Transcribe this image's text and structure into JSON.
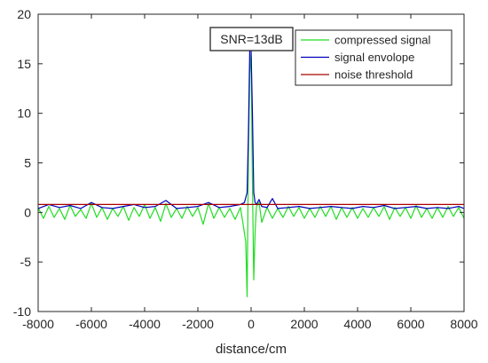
{
  "chart_data": {
    "type": "line",
    "title": "",
    "xlabel": "distance/cm",
    "ylabel": "",
    "xlim": [
      -8000,
      8000
    ],
    "ylim": [
      -10,
      20
    ],
    "xticks": [
      -8000,
      -6000,
      -4000,
      -2000,
      0,
      2000,
      4000,
      6000,
      8000
    ],
    "yticks": [
      -10,
      -5,
      0,
      5,
      10,
      15,
      20
    ],
    "xtick_labels": [
      "-8000",
      "-6000",
      "-4000",
      "-2000",
      "0",
      "2000",
      "4000",
      "6000",
      "8000"
    ],
    "ytick_labels": [
      "-10",
      "-5",
      "0",
      "5",
      "10",
      "15",
      "20"
    ],
    "grid": false,
    "legend_position": "top-right",
    "annotation": "SNR=13dB",
    "series": [
      {
        "name": "compressed signal",
        "color": "#22dd22",
        "x": [
          -8000,
          -7800,
          -7600,
          -7400,
          -7200,
          -7000,
          -6800,
          -6600,
          -6400,
          -6200,
          -6000,
          -5800,
          -5600,
          -5400,
          -5200,
          -5000,
          -4800,
          -4600,
          -4400,
          -4200,
          -4000,
          -3800,
          -3600,
          -3400,
          -3200,
          -3000,
          -2800,
          -2600,
          -2400,
          -2200,
          -2000,
          -1800,
          -1600,
          -1400,
          -1200,
          -1000,
          -800,
          -600,
          -400,
          -300,
          -200,
          -150,
          -100,
          -50,
          0,
          50,
          100,
          150,
          200,
          300,
          400,
          600,
          800,
          1000,
          1200,
          1400,
          1600,
          1800,
          2000,
          2200,
          2400,
          2600,
          2800,
          3000,
          3200,
          3400,
          3600,
          3800,
          4000,
          4200,
          4400,
          4600,
          4800,
          5000,
          5200,
          5400,
          5600,
          5800,
          6000,
          6200,
          6400,
          6600,
          6800,
          7000,
          7200,
          7400,
          7600,
          7800,
          8000
        ],
        "values": [
          0.5,
          -0.6,
          0.6,
          -0.5,
          0.4,
          -0.7,
          0.7,
          -0.4,
          0.3,
          -0.6,
          0.9,
          -0.5,
          0.5,
          -0.7,
          0.4,
          -0.4,
          0.6,
          -0.8,
          0.5,
          -0.4,
          0.8,
          -0.6,
          0.5,
          -0.9,
          0.9,
          -0.5,
          0.4,
          -0.6,
          0.6,
          -0.4,
          0.5,
          -1.2,
          0.9,
          -0.6,
          0.5,
          -0.5,
          0.4,
          -0.7,
          0.5,
          -1.2,
          -3.0,
          -8.5,
          6.0,
          14.0,
          16.0,
          3.0,
          -6.8,
          -2.0,
          0.6,
          1.0,
          -1.0,
          0.5,
          -0.6,
          0.4,
          -0.5,
          0.6,
          -0.4,
          0.5,
          -0.6,
          0.4,
          -0.5,
          0.6,
          -0.4,
          0.6,
          -0.7,
          0.5,
          -0.5,
          0.5,
          -0.6,
          0.4,
          -0.5,
          0.5,
          -0.4,
          0.6,
          -0.7,
          0.5,
          -0.4,
          0.5,
          -0.6,
          0.7,
          -0.5,
          0.4,
          -0.6,
          0.5,
          -0.5,
          0.6,
          -0.4,
          0.5,
          -0.6
        ]
      },
      {
        "name": "signal envolope",
        "color": "#0000bb",
        "x": [
          -8000,
          -7600,
          -7200,
          -6800,
          -6400,
          -6000,
          -5600,
          -5200,
          -4800,
          -4400,
          -4000,
          -3600,
          -3200,
          -2800,
          -2400,
          -2000,
          -1600,
          -1200,
          -800,
          -400,
          -250,
          -150,
          -100,
          -50,
          0,
          50,
          100,
          150,
          200,
          300,
          400,
          600,
          800,
          1000,
          1400,
          1800,
          2200,
          2600,
          3000,
          3400,
          3800,
          4200,
          4600,
          5000,
          5400,
          5800,
          6200,
          6600,
          7000,
          7400,
          7800,
          8000
        ],
        "values": [
          0.4,
          0.8,
          0.5,
          0.7,
          0.4,
          1.0,
          0.5,
          0.4,
          0.6,
          0.8,
          0.5,
          0.6,
          1.2,
          0.4,
          0.5,
          0.6,
          1.0,
          0.5,
          0.6,
          0.8,
          1.0,
          2.0,
          8.0,
          16.5,
          16.4,
          10.0,
          2.0,
          1.0,
          0.8,
          1.3,
          0.6,
          0.5,
          1.4,
          0.4,
          0.5,
          0.6,
          0.4,
          0.5,
          0.6,
          0.5,
          0.4,
          0.6,
          0.5,
          0.7,
          0.4,
          0.5,
          0.6,
          0.4,
          0.5,
          0.4,
          0.6,
          0.4
        ]
      },
      {
        "name": "noise threshold",
        "color": "#aa0000",
        "x": [
          -8000,
          8000
        ],
        "values": [
          0.8,
          0.8
        ]
      }
    ]
  }
}
